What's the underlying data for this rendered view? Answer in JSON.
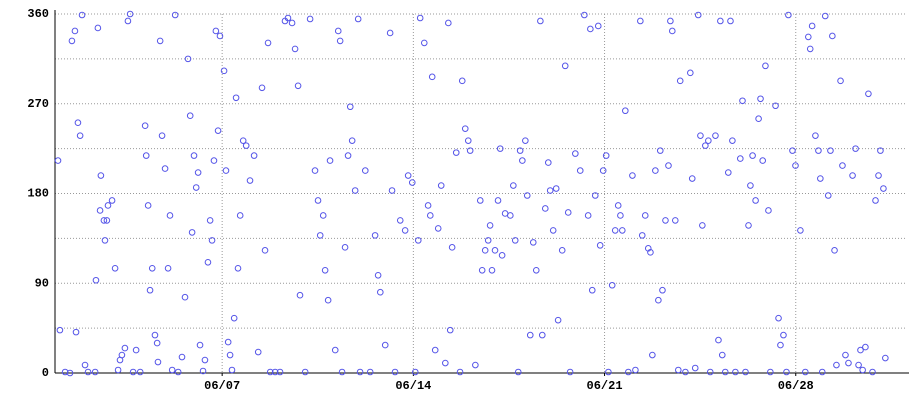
{
  "chart_data": {
    "type": "scatter",
    "color": "#5555e8",
    "grid": true,
    "xlim": [
      0.88,
      32.0
    ],
    "ylim": [
      0,
      360
    ],
    "xticks": [
      {
        "value": 7,
        "label": "06/07"
      },
      {
        "value": 14,
        "label": "06/14"
      },
      {
        "value": 21,
        "label": "06/21"
      },
      {
        "value": 28,
        "label": "06/28"
      }
    ],
    "yticks": [
      0,
      90,
      180,
      270,
      360
    ],
    "yminor": [
      45,
      135,
      225,
      315
    ],
    "x": [
      0.99,
      1.06,
      1.25,
      1.43,
      1.5,
      1.61,
      1.65,
      1.72,
      1.8,
      1.87,
      1.98,
      2.09,
      2.35,
      2.38,
      2.45,
      2.53,
      2.56,
      2.67,
      2.71,
      2.78,
      2.82,
      2.97,
      3.08,
      3.19,
      3.26,
      3.33,
      3.44,
      3.55,
      3.63,
      3.74,
      3.85,
      4.0,
      4.18,
      4.22,
      4.29,
      4.36,
      4.44,
      4.54,
      4.62,
      4.65,
      4.73,
      4.8,
      4.91,
      5.02,
      5.09,
      5.17,
      5.28,
      5.39,
      5.53,
      5.64,
      5.75,
      5.83,
      5.9,
      5.97,
      6.05,
      6.12,
      6.19,
      6.3,
      6.37,
      6.48,
      6.56,
      6.63,
      6.7,
      6.77,
      6.85,
      6.92,
      7.07,
      7.14,
      7.22,
      7.29,
      7.36,
      7.44,
      7.51,
      7.58,
      7.66,
      7.77,
      7.88,
      8.02,
      8.17,
      8.32,
      8.46,
      8.57,
      8.68,
      8.76,
      8.94,
      9.12,
      9.3,
      9.41,
      9.56,
      9.67,
      9.78,
      9.85,
      10.04,
      10.22,
      10.4,
      10.51,
      10.59,
      10.7,
      10.77,
      10.88,
      10.95,
      11.14,
      11.25,
      11.32,
      11.39,
      11.5,
      11.61,
      11.69,
      11.76,
      11.87,
      11.98,
      12.05,
      12.24,
      12.42,
      12.6,
      12.71,
      12.79,
      12.97,
      13.15,
      13.22,
      13.33,
      13.52,
      13.7,
      13.81,
      13.96,
      14.07,
      14.18,
      14.25,
      14.4,
      14.54,
      14.62,
      14.69,
      14.8,
      14.91,
      15.02,
      15.17,
      15.28,
      15.35,
      15.42,
      15.57,
      15.71,
      15.79,
      15.9,
      16.01,
      16.08,
      16.27,
      16.45,
      16.52,
      16.63,
      16.74,
      16.81,
      16.88,
      16.99,
      17.1,
      17.18,
      17.25,
      17.36,
      17.55,
      17.66,
      17.73,
      17.84,
      17.91,
      17.99,
      18.1,
      18.17,
      18.28,
      18.39,
      18.5,
      18.65,
      18.72,
      18.83,
      18.94,
      19.01,
      19.12,
      19.23,
      19.3,
      19.45,
      19.56,
      19.67,
      19.74,
      19.93,
      20.11,
      20.26,
      20.4,
      20.48,
      20.55,
      20.66,
      20.77,
      20.84,
      20.95,
      21.06,
      21.14,
      21.28,
      21.39,
      21.5,
      21.58,
      21.65,
      21.76,
      21.87,
      22.02,
      22.13,
      22.31,
      22.38,
      22.49,
      22.6,
      22.68,
      22.75,
      22.86,
      22.97,
      23.04,
      23.12,
      23.23,
      23.34,
      23.41,
      23.48,
      23.59,
      23.7,
      23.77,
      23.96,
      24.14,
      24.21,
      24.32,
      24.43,
      24.51,
      24.58,
      24.69,
      24.8,
      24.87,
      25.06,
      25.17,
      25.24,
      25.31,
      25.42,
      25.53,
      25.61,
      25.68,
      25.79,
      25.97,
      26.05,
      26.16,
      26.27,
      26.34,
      26.42,
      26.53,
      26.64,
      26.71,
      26.79,
      26.89,
      27.0,
      27.07,
      27.26,
      27.37,
      27.44,
      27.55,
      27.66,
      27.73,
      27.88,
      27.99,
      28.17,
      28.35,
      28.46,
      28.53,
      28.6,
      28.72,
      28.83,
      28.9,
      28.97,
      29.08,
      29.19,
      29.27,
      29.34,
      29.42,
      29.49,
      29.64,
      29.71,
      29.82,
      29.93,
      30.08,
      30.19,
      30.3,
      30.37,
      30.45,
      30.55,
      30.66,
      30.81,
      30.92,
      31.03,
      31.1,
      31.21,
      31.28
    ],
    "values": [
      213,
      43,
      1,
      0,
      333,
      343,
      41,
      251,
      238,
      359,
      8,
      1,
      1,
      93,
      346,
      163,
      198,
      153,
      133,
      153,
      168,
      173,
      105,
      3,
      13,
      18,
      25,
      353,
      360,
      1,
      23,
      1,
      248,
      218,
      168,
      83,
      105,
      38,
      30,
      11,
      333,
      238,
      205,
      105,
      158,
      3,
      359,
      1,
      16,
      76,
      315,
      258,
      141,
      218,
      186,
      201,
      28,
      2,
      13,
      111,
      153,
      133,
      213,
      343,
      243,
      338,
      303,
      203,
      31,
      18,
      3,
      55,
      276,
      105,
      158,
      233,
      228,
      193,
      218,
      21,
      286,
      123,
      331,
      1,
      1,
      1,
      353,
      356,
      351,
      325,
      288,
      78,
      1,
      355,
      203,
      173,
      138,
      158,
      103,
      73,
      213,
      23,
      343,
      333,
      1,
      126,
      218,
      267,
      233,
      183,
      355,
      1,
      203,
      1,
      138,
      98,
      81,
      28,
      341,
      183,
      1,
      153,
      143,
      198,
      191,
      1,
      133,
      356,
      331,
      168,
      158,
      297,
      23,
      145,
      188,
      10,
      351,
      43,
      126,
      221,
      1,
      293,
      245,
      233,
      223,
      8,
      173,
      103,
      123,
      133,
      148,
      103,
      123,
      173,
      225,
      118,
      160,
      158,
      188,
      133,
      1,
      223,
      213,
      233,
      178,
      38,
      131,
      103,
      353,
      38,
      165,
      211,
      183,
      143,
      185,
      53,
      123,
      308,
      161,
      1,
      220,
      203,
      359,
      158,
      345,
      83,
      178,
      348,
      128,
      203,
      218,
      1,
      88,
      143,
      168,
      158,
      143,
      263,
      1,
      198,
      3,
      353,
      138,
      158,
      125,
      121,
      18,
      203,
      73,
      223,
      83,
      153,
      208,
      353,
      343,
      153,
      3,
      293,
      1,
      301,
      195,
      5,
      359,
      238,
      148,
      228,
      233,
      1,
      238,
      33,
      353,
      18,
      1,
      201,
      353,
      233,
      1,
      215,
      273,
      1,
      148,
      188,
      218,
      173,
      255,
      275,
      213,
      308,
      163,
      1,
      268,
      55,
      28,
      38,
      1,
      359,
      223,
      208,
      143,
      1,
      337,
      325,
      348,
      238,
      223,
      195,
      1,
      358,
      178,
      223,
      338,
      123,
      8,
      293,
      208,
      18,
      10,
      198,
      225,
      8,
      23,
      3,
      26,
      280,
      1,
      173,
      198,
      223,
      185,
      15
    ]
  }
}
